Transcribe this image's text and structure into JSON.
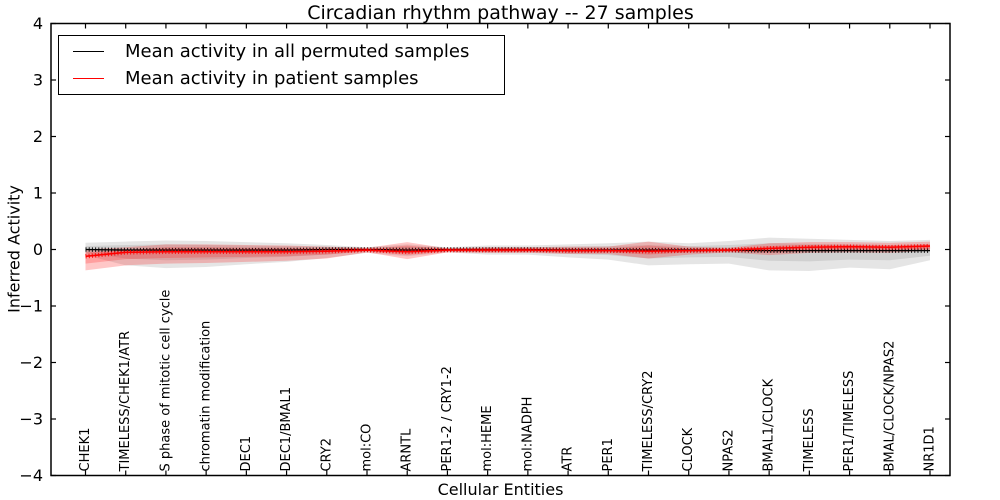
{
  "title": "Circadian rhythm pathway -- 27 samples",
  "legend": {
    "entries": [
      {
        "label": "Mean activity in all permuted samples",
        "color": "#000000"
      },
      {
        "label": "Mean activity in patient samples",
        "color": "#ff0000"
      }
    ]
  },
  "chart_data": {
    "type": "line",
    "title": "Circadian rhythm pathway -- 27 samples",
    "xlabel": "Cellular Entities",
    "ylabel": "Inferred Activity",
    "ylim": [
      -4,
      4
    ],
    "yticks": [
      4,
      3,
      2,
      1,
      0,
      -1,
      -2,
      -3,
      -4
    ],
    "grid": false,
    "legend_position": "upper left",
    "categories": [
      "CHEK1",
      "TIMELESS/CHEK1/ATR",
      "S phase of mitotic cell cycle",
      "chromatin modification",
      "DEC1",
      "DEC1/BMAL1",
      "CRY2",
      "mol:CO",
      "ARNTL",
      "PER1-2 / CRY1-2",
      "mol:HEME",
      "mol:NADPH",
      "ATR",
      "PER1",
      "TIMELESS/CRY2",
      "CLOCK",
      "NPAS2",
      "BMAL1/CLOCK",
      "TIMELESS",
      "PER1/TIMELESS",
      "BMAL/CLOCK/NPAS2",
      "NR1D1"
    ],
    "series": [
      {
        "name": "Mean activity in all permuted samples",
        "color": "#000000",
        "band_color": "#000000",
        "mean": [
          0,
          -0.01,
          -0.01,
          -0.01,
          -0.01,
          -0.01,
          0,
          0,
          -0.01,
          0,
          0,
          0,
          -0.01,
          -0.01,
          -0.01,
          -0.01,
          -0.01,
          -0.02,
          -0.02,
          -0.02,
          -0.02,
          -0.02
        ],
        "band_outer_upper": [
          0.12,
          0.14,
          0.16,
          0.15,
          0.13,
          0.11,
          0.08,
          0.04,
          0.09,
          0.04,
          0.07,
          0.07,
          0.09,
          0.11,
          0.14,
          0.11,
          0.15,
          0.21,
          0.19,
          0.17,
          0.15,
          0.17
        ],
        "band_outer_lower": [
          -0.1,
          -0.28,
          -0.33,
          -0.31,
          -0.26,
          -0.22,
          -0.15,
          -0.06,
          -0.12,
          -0.05,
          -0.09,
          -0.09,
          -0.14,
          -0.18,
          -0.28,
          -0.26,
          -0.25,
          -0.37,
          -0.38,
          -0.32,
          -0.35,
          -0.19
        ],
        "band_inner_upper": [
          0.06,
          0.08,
          0.09,
          0.08,
          0.07,
          0.06,
          0.05,
          0.02,
          0.05,
          0.02,
          0.04,
          0.04,
          0.05,
          0.06,
          0.08,
          0.06,
          0.08,
          0.11,
          0.1,
          0.09,
          0.08,
          0.09
        ],
        "band_inner_lower": [
          -0.06,
          -0.16,
          -0.19,
          -0.18,
          -0.15,
          -0.13,
          -0.09,
          -0.03,
          -0.07,
          -0.03,
          -0.05,
          -0.05,
          -0.08,
          -0.1,
          -0.16,
          -0.14,
          -0.13,
          -0.2,
          -0.21,
          -0.18,
          -0.19,
          -0.11
        ]
      },
      {
        "name": "Mean activity in patient samples",
        "color": "#ff0000",
        "band_color": "#ff0000",
        "mean": [
          -0.12,
          -0.05,
          -0.04,
          -0.04,
          -0.04,
          -0.04,
          -0.03,
          -0.01,
          -0.04,
          -0.01,
          -0.01,
          -0.01,
          -0.02,
          -0.02,
          -0.03,
          -0.02,
          -0.01,
          0.02,
          0.04,
          0.05,
          0.04,
          0.06
        ],
        "band_outer_upper": [
          0.0,
          0.04,
          0.09,
          0.09,
          0.08,
          0.07,
          0.05,
          0.03,
          0.13,
          0.02,
          0.04,
          0.04,
          0.05,
          0.05,
          0.14,
          0.05,
          0.03,
          0.11,
          0.13,
          0.13,
          0.12,
          0.14
        ],
        "band_outer_lower": [
          -0.37,
          -0.28,
          -0.25,
          -0.24,
          -0.22,
          -0.2,
          -0.16,
          -0.05,
          -0.17,
          -0.05,
          -0.06,
          -0.06,
          -0.08,
          -0.08,
          -0.16,
          -0.09,
          -0.05,
          -0.1,
          -0.06,
          -0.05,
          -0.06,
          -0.02
        ],
        "band_inner_upper": [
          -0.05,
          -0.01,
          0.04,
          0.04,
          0.03,
          0.03,
          0.02,
          0.01,
          0.07,
          0.01,
          0.02,
          0.02,
          0.02,
          0.02,
          0.07,
          0.02,
          0.01,
          0.06,
          0.08,
          0.08,
          0.07,
          0.09
        ],
        "band_inner_lower": [
          -0.25,
          -0.17,
          -0.15,
          -0.14,
          -0.13,
          -0.12,
          -0.09,
          -0.03,
          -0.1,
          -0.03,
          -0.04,
          -0.04,
          -0.05,
          -0.05,
          -0.09,
          -0.05,
          -0.03,
          -0.06,
          -0.03,
          -0.02,
          -0.03,
          0.0
        ]
      }
    ]
  }
}
